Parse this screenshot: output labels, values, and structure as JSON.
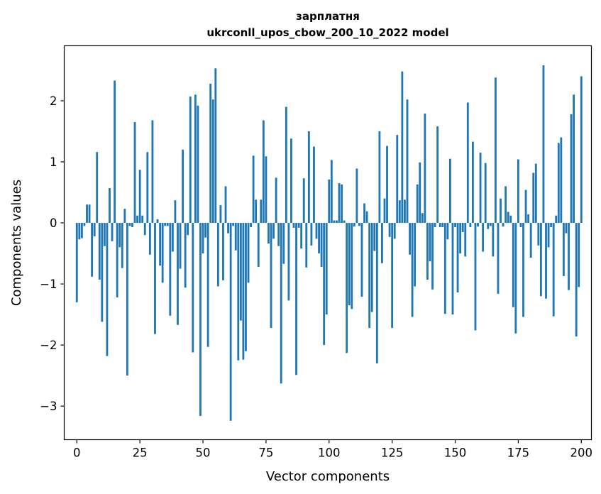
{
  "chart_data": {
    "type": "bar",
    "title": "зарплатня",
    "subtitle": "ukrconll_upos_cbow_200_10_2022 model",
    "xlabel": "Vector components",
    "ylabel": "Components values",
    "xlim": [
      -5,
      204
    ],
    "ylim": [
      -3.55,
      2.9
    ],
    "xticks": [
      0,
      25,
      50,
      75,
      100,
      125,
      150,
      175,
      200
    ],
    "yticks": [
      -3,
      -2,
      -1,
      0,
      1,
      2
    ],
    "xtick_labels": [
      "0",
      "25",
      "50",
      "75",
      "100",
      "125",
      "150",
      "175",
      "200"
    ],
    "ytick_labels": [
      "−3",
      "−2",
      "−1",
      "0",
      "1",
      "2"
    ],
    "bar_color": "#1f77b4",
    "grid": false,
    "values": [
      -1.3,
      -0.27,
      -0.25,
      -0.05,
      0.3,
      0.3,
      -0.88,
      -0.22,
      1.16,
      -0.93,
      -1.62,
      -0.38,
      -2.18,
      0.57,
      -0.3,
      2.33,
      -1.22,
      -0.4,
      -0.74,
      0.23,
      -2.5,
      -0.05,
      -0.07,
      1.65,
      0.12,
      0.87,
      0.12,
      -0.2,
      1.16,
      -0.52,
      1.68,
      -1.82,
      0.06,
      -0.7,
      -0.98,
      -0.05,
      -0.05,
      -1.52,
      -0.47,
      0.37,
      -1.67,
      -0.75,
      1.2,
      -1.06,
      -0.2,
      2.07,
      -2.12,
      2.1,
      1.92,
      -3.16,
      -0.5,
      -0.24,
      -2.03,
      2.28,
      2.02,
      2.53,
      -1.04,
      0.29,
      -0.94,
      0.6,
      -0.17,
      -3.24,
      -0.05,
      -0.45,
      -2.25,
      -1.6,
      -2.24,
      -2.1,
      -0.98,
      -0.07,
      1.1,
      0.38,
      -0.72,
      0.38,
      1.68,
      1.09,
      -0.34,
      -1.72,
      -0.26,
      0.74,
      -0.38,
      -2.63,
      -0.67,
      1.9,
      -1.27,
      1.38,
      -0.08,
      -2.49,
      -0.08,
      -0.42,
      0.73,
      -0.73,
      1.5,
      -0.37,
      1.25,
      -0.26,
      -0.5,
      -0.72,
      -2.0,
      -1.5,
      0.71,
      1.03,
      0.04,
      0.04,
      0.65,
      0.63,
      0.04,
      -2.13,
      -1.35,
      -1.41,
      -0.06,
      0.89,
      -0.05,
      -1.21,
      0.32,
      0.19,
      -1.72,
      -1.46,
      -0.46,
      -2.3,
      1.5,
      -0.66,
      0.4,
      1.26,
      -0.23,
      -1.72,
      -0.26,
      1.44,
      0.37,
      2.48,
      0.38,
      2.02,
      -0.52,
      -1.54,
      -1.04,
      0.63,
      0.99,
      0.16,
      1.79,
      -0.93,
      -0.63,
      -1.09,
      -0.07,
      1.58,
      -0.07,
      -0.07,
      -1.49,
      -0.27,
      1.05,
      -1.5,
      -0.07,
      -1.14,
      -0.5,
      -0.15,
      -0.55,
      1.97,
      -0.07,
      1.33,
      -1.76,
      -0.06,
      1.15,
      -0.47,
      0.98,
      -0.1,
      -0.05,
      -0.55,
      2.38,
      -1.16,
      0.4,
      -0.06,
      0.6,
      0.18,
      0.12,
      -1.38,
      -1.81,
      1.04,
      -0.07,
      -1.54,
      0.54,
      0.14,
      -0.57,
      0.82,
      0.97,
      -0.37,
      -1.2,
      2.58,
      -1.24,
      -0.4,
      -0.07,
      -1.53,
      0.12,
      1.31,
      1.4,
      -0.87,
      -0.17,
      -1.1,
      1.78,
      2.1,
      -1.86,
      -1.05,
      2.4
    ]
  }
}
